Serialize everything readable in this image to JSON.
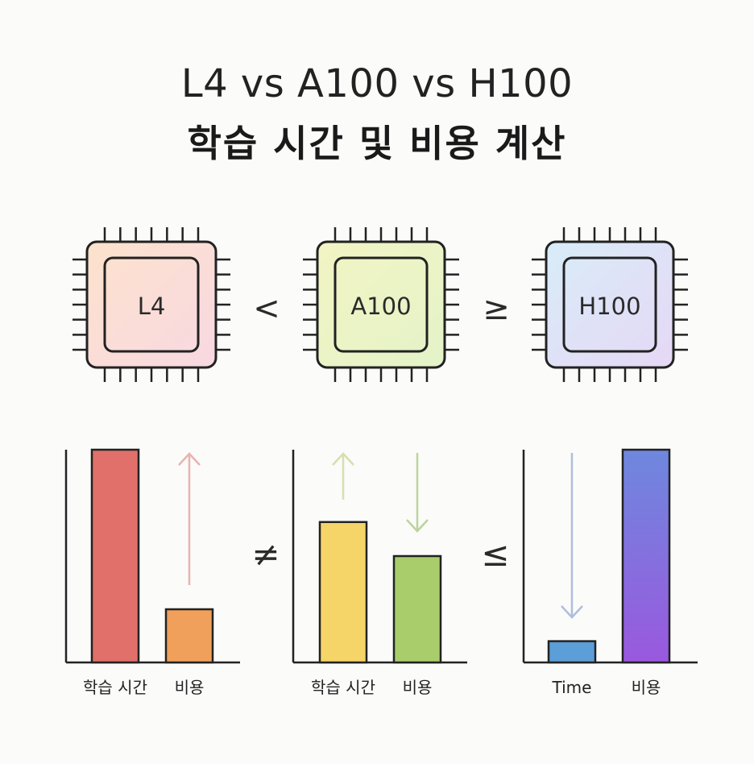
{
  "title": {
    "line1": "L4 vs A100 vs H100",
    "line2": "학습 시간 및 비용 계산"
  },
  "chips": [
    {
      "name": "L4",
      "gradient": [
        "#fde2cc",
        "#f8d8e2"
      ]
    },
    {
      "name": "A100",
      "gradient": [
        "#f2f4c4",
        "#e4f3c8"
      ]
    },
    {
      "name": "H100",
      "gradient": [
        "#d8ecf8",
        "#e6d8f5"
      ]
    }
  ],
  "chip_operators": [
    "<",
    "≥"
  ],
  "bar_operators": [
    "≠",
    "≤"
  ],
  "chart_data": [
    {
      "type": "bar",
      "categories": [
        "학습 시간",
        "비용"
      ],
      "values": [
        10,
        2.5
      ],
      "colors": [
        "#e07069",
        "#f0a05a"
      ],
      "arrow": {
        "category": "비용",
        "direction": "up",
        "color": "#e8b4ae"
      },
      "ylim": [
        0,
        10
      ]
    },
    {
      "type": "bar",
      "categories": [
        "학습 시간",
        "비용"
      ],
      "values": [
        6.6,
        5.0
      ],
      "colors": [
        "#f5d468",
        "#a8cd6a"
      ],
      "arrow": [
        {
          "category": "학습 시간",
          "direction": "up",
          "color": "#d8deae"
        },
        {
          "category": "비용",
          "direction": "down",
          "color": "#bcd49a"
        }
      ],
      "ylim": [
        0,
        10
      ]
    },
    {
      "type": "bar",
      "categories": [
        "Time",
        "비용"
      ],
      "values": [
        1.0,
        10
      ],
      "colors": [
        "#5b9ed8",
        "#7a6ae0"
      ],
      "arrow": {
        "category": "Time",
        "direction": "down",
        "color": "#aebedc"
      },
      "ylim": [
        0,
        10
      ]
    }
  ]
}
